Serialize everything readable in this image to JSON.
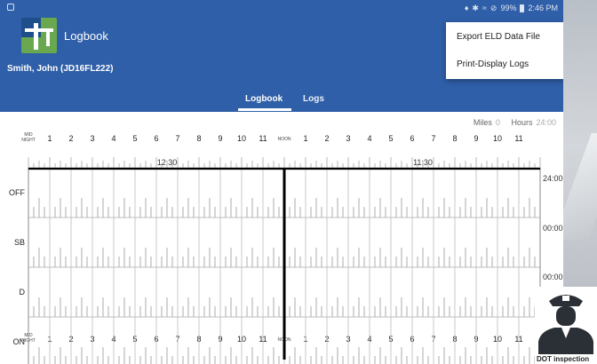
{
  "status_bar": {
    "battery": "99%",
    "time": "2:46 PM"
  },
  "header": {
    "app_title": "Logbook",
    "driver_name": "Smith, John (JD16FL222)"
  },
  "tabs": [
    {
      "label": "Logbook",
      "active": true
    },
    {
      "label": "Logs",
      "active": false
    }
  ],
  "overflow_menu": {
    "items": [
      "Export ELD Data File",
      "Print-Display Logs"
    ]
  },
  "summary": {
    "miles_label": "Miles",
    "miles_value": "0",
    "hours_label": "Hours",
    "hours_value": "24:00"
  },
  "grid": {
    "hour_labels": [
      "1",
      "2",
      "3",
      "4",
      "5",
      "6",
      "7",
      "8",
      "9",
      "10",
      "11",
      "1",
      "2",
      "3",
      "4",
      "5",
      "6",
      "7",
      "8",
      "9",
      "10",
      "11"
    ],
    "midnight_label_top": "MID",
    "midnight_label_bottom": "NIGHT",
    "noon_label": "NOON",
    "markers": [
      "12:30",
      "11:30"
    ],
    "rows": [
      {
        "label": "OFF",
        "total": "24:00"
      },
      {
        "label": "SB",
        "total": "00:00"
      },
      {
        "label": "D",
        "total": "00:00"
      },
      {
        "label": "ON",
        "total": ""
      }
    ],
    "current_time_fraction": 0.5
  },
  "dot_inspection": {
    "label": "DOT inspection"
  },
  "colors": {
    "header": "#2f5fa8",
    "duty_line": "#000000",
    "grid_line": "#999999"
  }
}
